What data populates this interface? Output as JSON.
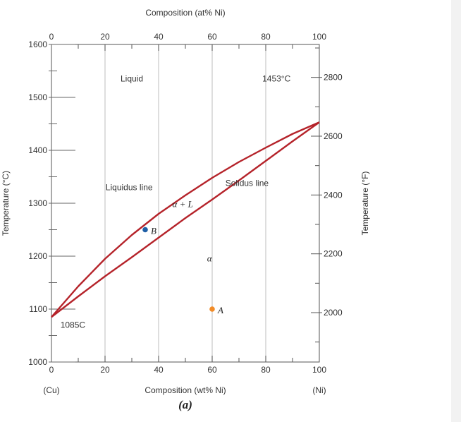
{
  "chart_data": {
    "type": "line",
    "title": "",
    "top_axis_label": "Composition (at% Ni)",
    "bottom_axis_label": "Composition (wt% Ni)",
    "left_axis_label": "Temperature (°C)",
    "right_axis_label": "Temperature (°F)",
    "caption": "(a)",
    "xlim": [
      0,
      100
    ],
    "ylim": [
      1000,
      1600
    ],
    "grid": "vertical-only",
    "x_ticks": [
      "0",
      "20",
      "40",
      "60",
      "80",
      "100"
    ],
    "y_ticks": [
      "1000",
      "1100",
      "1200",
      "1300",
      "1400",
      "1500",
      "1600"
    ],
    "top_ticks": [
      {
        "wt": 0,
        "label": "0"
      },
      {
        "wt": 20,
        "label": "20"
      },
      {
        "wt": 40,
        "label": "40"
      },
      {
        "wt": 60,
        "label": "60"
      },
      {
        "wt": 80,
        "label": "80"
      },
      {
        "wt": 100,
        "label": "100"
      }
    ],
    "right_ticks": [
      {
        "temp_c": 1093.3,
        "label": "2000"
      },
      {
        "temp_c": 1204.4,
        "label": "2200"
      },
      {
        "temp_c": 1315.6,
        "label": "2400"
      },
      {
        "temp_c": 1426.7,
        "label": "2600"
      },
      {
        "temp_c": 1537.8,
        "label": "2800"
      }
    ],
    "end_labels": {
      "left": "(Cu)",
      "right": "(Ni)"
    },
    "line_color": "#b5232a",
    "series": [
      {
        "name": "Liquidus line",
        "x": [
          0,
          10,
          20,
          30,
          40,
          50,
          60,
          70,
          80,
          90,
          100
        ],
        "y": [
          1085,
          1143,
          1195,
          1240,
          1280,
          1315,
          1348,
          1378,
          1405,
          1431,
          1453
        ]
      },
      {
        "name": "Solidus line",
        "x": [
          0,
          10,
          20,
          30,
          40,
          50,
          60,
          70,
          80,
          90,
          100
        ],
        "y": [
          1085,
          1124,
          1162,
          1198,
          1235,
          1272,
          1307,
          1343,
          1380,
          1417,
          1453
        ]
      }
    ],
    "points": [
      {
        "label": "B",
        "x": 35,
        "y": 1250,
        "color": "#1f5fa6"
      },
      {
        "label": "A",
        "x": 60,
        "y": 1100,
        "color": "#f28c28"
      }
    ],
    "annotations": [
      {
        "text": "Liquid",
        "x": 30,
        "y": 1530
      },
      {
        "text": "1453°C",
        "x": 84,
        "y": 1530
      },
      {
        "text": "Liquidus line",
        "x": 29,
        "y": 1325
      },
      {
        "text": "Solidus line",
        "x": 73,
        "y": 1333
      },
      {
        "text": "α + L",
        "x": 49,
        "y": 1293
      },
      {
        "text": "α",
        "x": 59,
        "y": 1190
      },
      {
        "text": "1085C",
        "x": 8,
        "y": 1065
      }
    ]
  }
}
